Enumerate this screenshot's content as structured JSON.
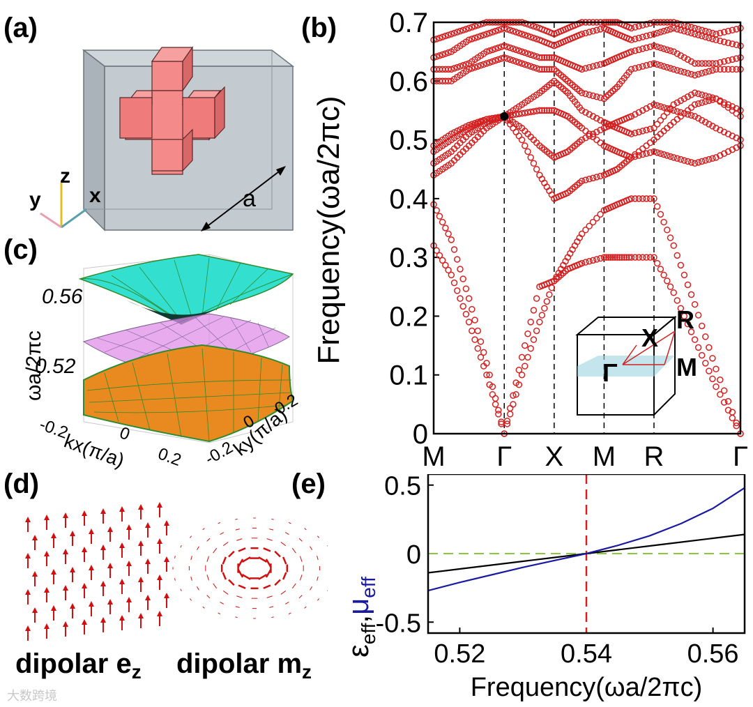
{
  "panels": {
    "a": "(a)",
    "b": "(b)",
    "c": "(c)",
    "d": "(d)",
    "e": "(e)"
  },
  "panel_a": {
    "axis_y": "y",
    "axis_z": "z",
    "axis_x": "x",
    "lattice_constant": "a",
    "colors": {
      "cube": "#b9c2c8",
      "cross": "#f08080"
    }
  },
  "panel_c": {
    "ylabel": "ωa/2πc",
    "ytick_top": "0.56",
    "ytick_bottom": "0.52",
    "xticks": [
      "-0.2",
      "0",
      "0.2"
    ],
    "xlabel": "kx(π/a)",
    "yticks": [
      "-0.2",
      "0",
      "0.2"
    ],
    "ylabel2": "ky(π/a)",
    "colors": {
      "top": "#33e0d0",
      "middle": "#e090e8",
      "bottom": "#e88a20",
      "grid": "#2e8b2e"
    }
  },
  "panel_d": {
    "caption_left": "dipolar e",
    "caption_left_sub": "z",
    "caption_right": "dipolar m",
    "caption_right_sub": "z",
    "arrow_color": "#d01010"
  },
  "watermark": "大数跨境",
  "chart_data": [
    {
      "id": "b",
      "type": "scatter",
      "title": "",
      "ylabel": "Frequency(ωa/2πc)",
      "xlabel": "",
      "ylim": [
        0,
        0.7
      ],
      "yticks": [
        "0",
        "0.1",
        "0.2",
        "0.3",
        "0.4",
        "0.5",
        "0.6",
        "0.7"
      ],
      "xtick_labels": [
        "M",
        "Γ",
        "X",
        "M",
        "R",
        "Γ"
      ],
      "x_positions": [
        0,
        1,
        1.707,
        2.414,
        3.121,
        4.346
      ],
      "marker_color": "#d42020",
      "dirac_point": {
        "x": 1,
        "y": 0.54
      },
      "inset_labels": {
        "R": "R",
        "X": "X",
        "G": "Γ",
        "M": "M"
      },
      "bands": [
        {
          "name": "band1",
          "x": [
            0,
            0.25,
            0.5,
            0.75,
            1,
            1.25,
            1.5,
            1.707,
            1.9,
            2.1,
            2.414,
            2.6,
            2.8,
            3.121,
            3.4,
            3.7,
            4.0,
            4.346
          ],
          "y": [
            0.32,
            0.27,
            0.19,
            0.1,
            0.0,
            0.1,
            0.19,
            0.26,
            0.28,
            0.29,
            0.3,
            0.3,
            0.3,
            0.3,
            0.24,
            0.16,
            0.08,
            0.0
          ]
        },
        {
          "name": "band2",
          "x": [
            0,
            0.25,
            0.5,
            0.75,
            1,
            1.25,
            1.5,
            1.707,
            1.9,
            2.1,
            2.414,
            2.6,
            2.8,
            3.121,
            3.4,
            3.7,
            4.0,
            4.346
          ],
          "y": [
            0.39,
            0.33,
            0.23,
            0.12,
            0.0,
            0.13,
            0.25,
            0.26,
            0.3,
            0.34,
            0.38,
            0.39,
            0.4,
            0.4,
            0.32,
            0.22,
            0.11,
            0.0
          ]
        },
        {
          "name": "band3",
          "x": [
            0,
            0.25,
            0.5,
            0.75,
            1,
            1.25,
            1.5,
            1.707,
            1.9,
            2.1,
            2.414,
            2.6,
            2.8,
            3.121,
            3.4,
            3.7,
            4.0,
            4.346
          ],
          "y": [
            0.44,
            0.46,
            0.49,
            0.52,
            0.54,
            0.5,
            0.44,
            0.4,
            0.41,
            0.43,
            0.44,
            0.45,
            0.47,
            0.48,
            0.47,
            0.46,
            0.47,
            0.49
          ]
        },
        {
          "name": "band4",
          "x": [
            0,
            0.25,
            0.5,
            0.75,
            1,
            1.25,
            1.5,
            1.707,
            1.9,
            2.1,
            2.414,
            2.6,
            2.8,
            3.121,
            3.4,
            3.7,
            4.0,
            4.346
          ],
          "y": [
            0.46,
            0.48,
            0.51,
            0.53,
            0.54,
            0.52,
            0.49,
            0.47,
            0.48,
            0.5,
            0.52,
            0.53,
            0.54,
            0.56,
            0.55,
            0.54,
            0.52,
            0.5
          ]
        },
        {
          "name": "band5",
          "x": [
            0,
            0.25,
            0.5,
            0.75,
            1,
            1.25,
            1.5,
            1.707,
            1.9,
            2.1,
            2.414,
            2.6,
            2.8,
            3.121,
            3.4,
            3.7,
            4.0,
            4.346
          ],
          "y": [
            0.48,
            0.5,
            0.52,
            0.535,
            0.54,
            0.545,
            0.55,
            0.55,
            0.54,
            0.52,
            0.49,
            0.48,
            0.47,
            0.5,
            0.53,
            0.56,
            0.57,
            0.54
          ]
        },
        {
          "name": "band6",
          "x": [
            0,
            0.25,
            0.5,
            0.75,
            1,
            1.25,
            1.5,
            1.707,
            1.9,
            2.1,
            2.414,
            2.6,
            2.8,
            3.121,
            3.4,
            3.7,
            4.0,
            4.346
          ],
          "y": [
            0.49,
            0.51,
            0.525,
            0.535,
            0.54,
            0.56,
            0.58,
            0.6,
            0.58,
            0.55,
            0.53,
            0.52,
            0.51,
            0.52,
            0.56,
            0.58,
            0.57,
            0.55
          ]
        },
        {
          "name": "band7",
          "x": [
            0,
            0.25,
            0.5,
            0.75,
            1,
            1.25,
            1.5,
            1.707,
            1.9,
            2.1,
            2.414,
            2.6,
            2.8,
            3.121,
            3.4,
            3.7,
            4.0,
            4.346
          ],
          "y": [
            0.6,
            0.6,
            0.62,
            0.63,
            0.64,
            0.63,
            0.62,
            0.62,
            0.6,
            0.58,
            0.57,
            0.59,
            0.62,
            0.63,
            0.62,
            0.61,
            0.62,
            0.62
          ]
        },
        {
          "name": "band8",
          "x": [
            0,
            0.25,
            0.5,
            0.75,
            1,
            1.25,
            1.5,
            1.707,
            1.9,
            2.1,
            2.414,
            2.6,
            2.8,
            3.121,
            3.4,
            3.7,
            4.0,
            4.346
          ],
          "y": [
            0.62,
            0.62,
            0.63,
            0.65,
            0.66,
            0.65,
            0.64,
            0.64,
            0.63,
            0.62,
            0.63,
            0.64,
            0.65,
            0.66,
            0.65,
            0.63,
            0.63,
            0.64
          ]
        },
        {
          "name": "band9",
          "x": [
            0,
            0.25,
            0.5,
            0.75,
            1,
            1.25,
            1.5,
            1.707,
            1.9,
            2.1,
            2.414,
            2.6,
            2.8,
            3.121,
            3.4,
            3.7,
            4.0,
            4.346
          ],
          "y": [
            0.64,
            0.65,
            0.67,
            0.68,
            0.69,
            0.68,
            0.67,
            0.66,
            0.67,
            0.68,
            0.69,
            0.68,
            0.67,
            0.68,
            0.69,
            0.68,
            0.67,
            0.66
          ]
        },
        {
          "name": "band10",
          "x": [
            0,
            0.25,
            0.5,
            0.75,
            1,
            1.25,
            1.5,
            1.707,
            1.9,
            2.1,
            2.414,
            2.6,
            2.8,
            3.121,
            3.4,
            3.7,
            4.0,
            4.346
          ],
          "y": [
            0.67,
            0.68,
            0.69,
            0.7,
            0.7,
            0.7,
            0.69,
            0.68,
            0.69,
            0.7,
            0.7,
            0.7,
            0.69,
            0.7,
            0.7,
            0.69,
            0.68,
            0.69
          ]
        }
      ]
    },
    {
      "id": "e",
      "type": "line",
      "title": "",
      "xlabel": "Frequency(ωa/2πc)",
      "ylabel_eps": "ε",
      "ylabel_eps_sub": "eff",
      "ylabel_sep": ",",
      "ylabel_mu": "μ",
      "ylabel_mu_sub": "eff",
      "xlim": [
        0.515,
        0.565
      ],
      "ylim": [
        -0.58,
        0.58
      ],
      "xticks": [
        0.52,
        0.54,
        0.56
      ],
      "xtick_labels": [
        "0.52",
        "0.54",
        "0.56"
      ],
      "yticks": [
        -0.5,
        0,
        0.5
      ],
      "ytick_labels": [
        "-0.5",
        "0",
        "0.5"
      ],
      "vline_x": 0.54,
      "hline_y": 0,
      "vline_color": "#d42020",
      "hline_color": "#8cc63f",
      "series": [
        {
          "name": "ε_eff",
          "color": "#000000",
          "x": [
            0.515,
            0.52,
            0.525,
            0.53,
            0.535,
            0.54,
            0.545,
            0.55,
            0.555,
            0.56,
            0.565
          ],
          "values": [
            -0.14,
            -0.112,
            -0.084,
            -0.056,
            -0.028,
            0.0,
            0.028,
            0.056,
            0.084,
            0.112,
            0.14
          ]
        },
        {
          "name": "μ_eff",
          "color": "#1a1aa0",
          "x": [
            0.515,
            0.52,
            0.525,
            0.53,
            0.535,
            0.54,
            0.545,
            0.55,
            0.555,
            0.56,
            0.565
          ],
          "values": [
            -0.27,
            -0.21,
            -0.155,
            -0.1,
            -0.05,
            0.0,
            0.06,
            0.13,
            0.22,
            0.33,
            0.48
          ]
        }
      ]
    }
  ]
}
